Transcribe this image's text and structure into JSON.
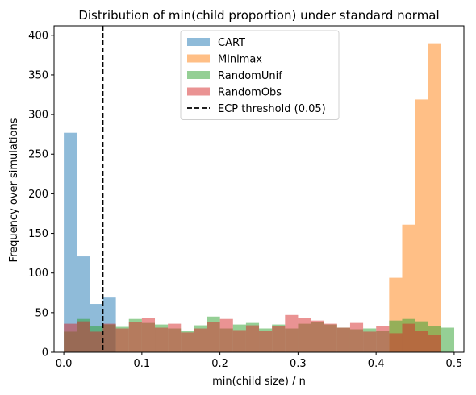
{
  "chart_data": {
    "type": "histogram",
    "title": "Distribution of min(child proportion) under standard normal",
    "xlabel": "min(child size) / n",
    "ylabel": "Frequency over simulations",
    "xlim": [
      -0.0125,
      0.5125
    ],
    "ylim": [
      0,
      412
    ],
    "x_ticks": [
      0.0,
      0.1,
      0.2,
      0.3,
      0.4,
      0.5
    ],
    "x_tick_labels": [
      "0.0",
      "0.1",
      "0.2",
      "0.3",
      "0.4",
      "0.5"
    ],
    "y_ticks": [
      0,
      50,
      100,
      150,
      200,
      250,
      300,
      350,
      400
    ],
    "y_tick_labels": [
      "0",
      "50",
      "100",
      "150",
      "200",
      "250",
      "300",
      "350",
      "400"
    ],
    "bin_start": 0.0,
    "bin_width": 0.01667,
    "bins": 30,
    "series": [
      {
        "name": "CART",
        "color": "#1f77b4",
        "values": [
          277,
          121,
          61,
          69,
          0,
          0,
          0,
          0,
          0,
          0,
          0,
          0,
          0,
          0,
          0,
          0,
          0,
          0,
          0,
          0,
          0,
          0,
          0,
          0,
          0,
          0,
          0,
          0,
          0,
          0
        ]
      },
      {
        "name": "Minimax",
        "color": "#ff7f0e",
        "values": [
          0,
          0,
          0,
          0,
          0,
          0,
          0,
          0,
          0,
          0,
          0,
          0,
          0,
          0,
          0,
          0,
          0,
          0,
          0,
          0,
          0,
          0,
          0,
          0,
          0,
          94,
          161,
          319,
          390,
          0
        ]
      },
      {
        "name": "RandomUnif",
        "color": "#2ca02c",
        "values": [
          26,
          42,
          33,
          35,
          32,
          42,
          37,
          35,
          30,
          27,
          34,
          45,
          30,
          35,
          37,
          30,
          35,
          30,
          36,
          38,
          35,
          31,
          29,
          30,
          27,
          40,
          42,
          39,
          33,
          31
        ]
      },
      {
        "name": "RandomObs",
        "color": "#d62728",
        "values": [
          36,
          39,
          26,
          36,
          30,
          38,
          43,
          31,
          36,
          25,
          30,
          38,
          42,
          28,
          34,
          27,
          33,
          47,
          43,
          40,
          36,
          31,
          37,
          26,
          33,
          24,
          36,
          27,
          22,
          0
        ]
      }
    ],
    "threshold": {
      "name": "ECP threshold (0.05)",
      "x": 0.05,
      "color": "#000000",
      "style": "dashed"
    },
    "legend": {
      "position": "top-center",
      "entries": [
        "CART",
        "Minimax",
        "RandomUnif",
        "RandomObs",
        "ECP threshold (0.05)"
      ]
    },
    "grid": false
  }
}
